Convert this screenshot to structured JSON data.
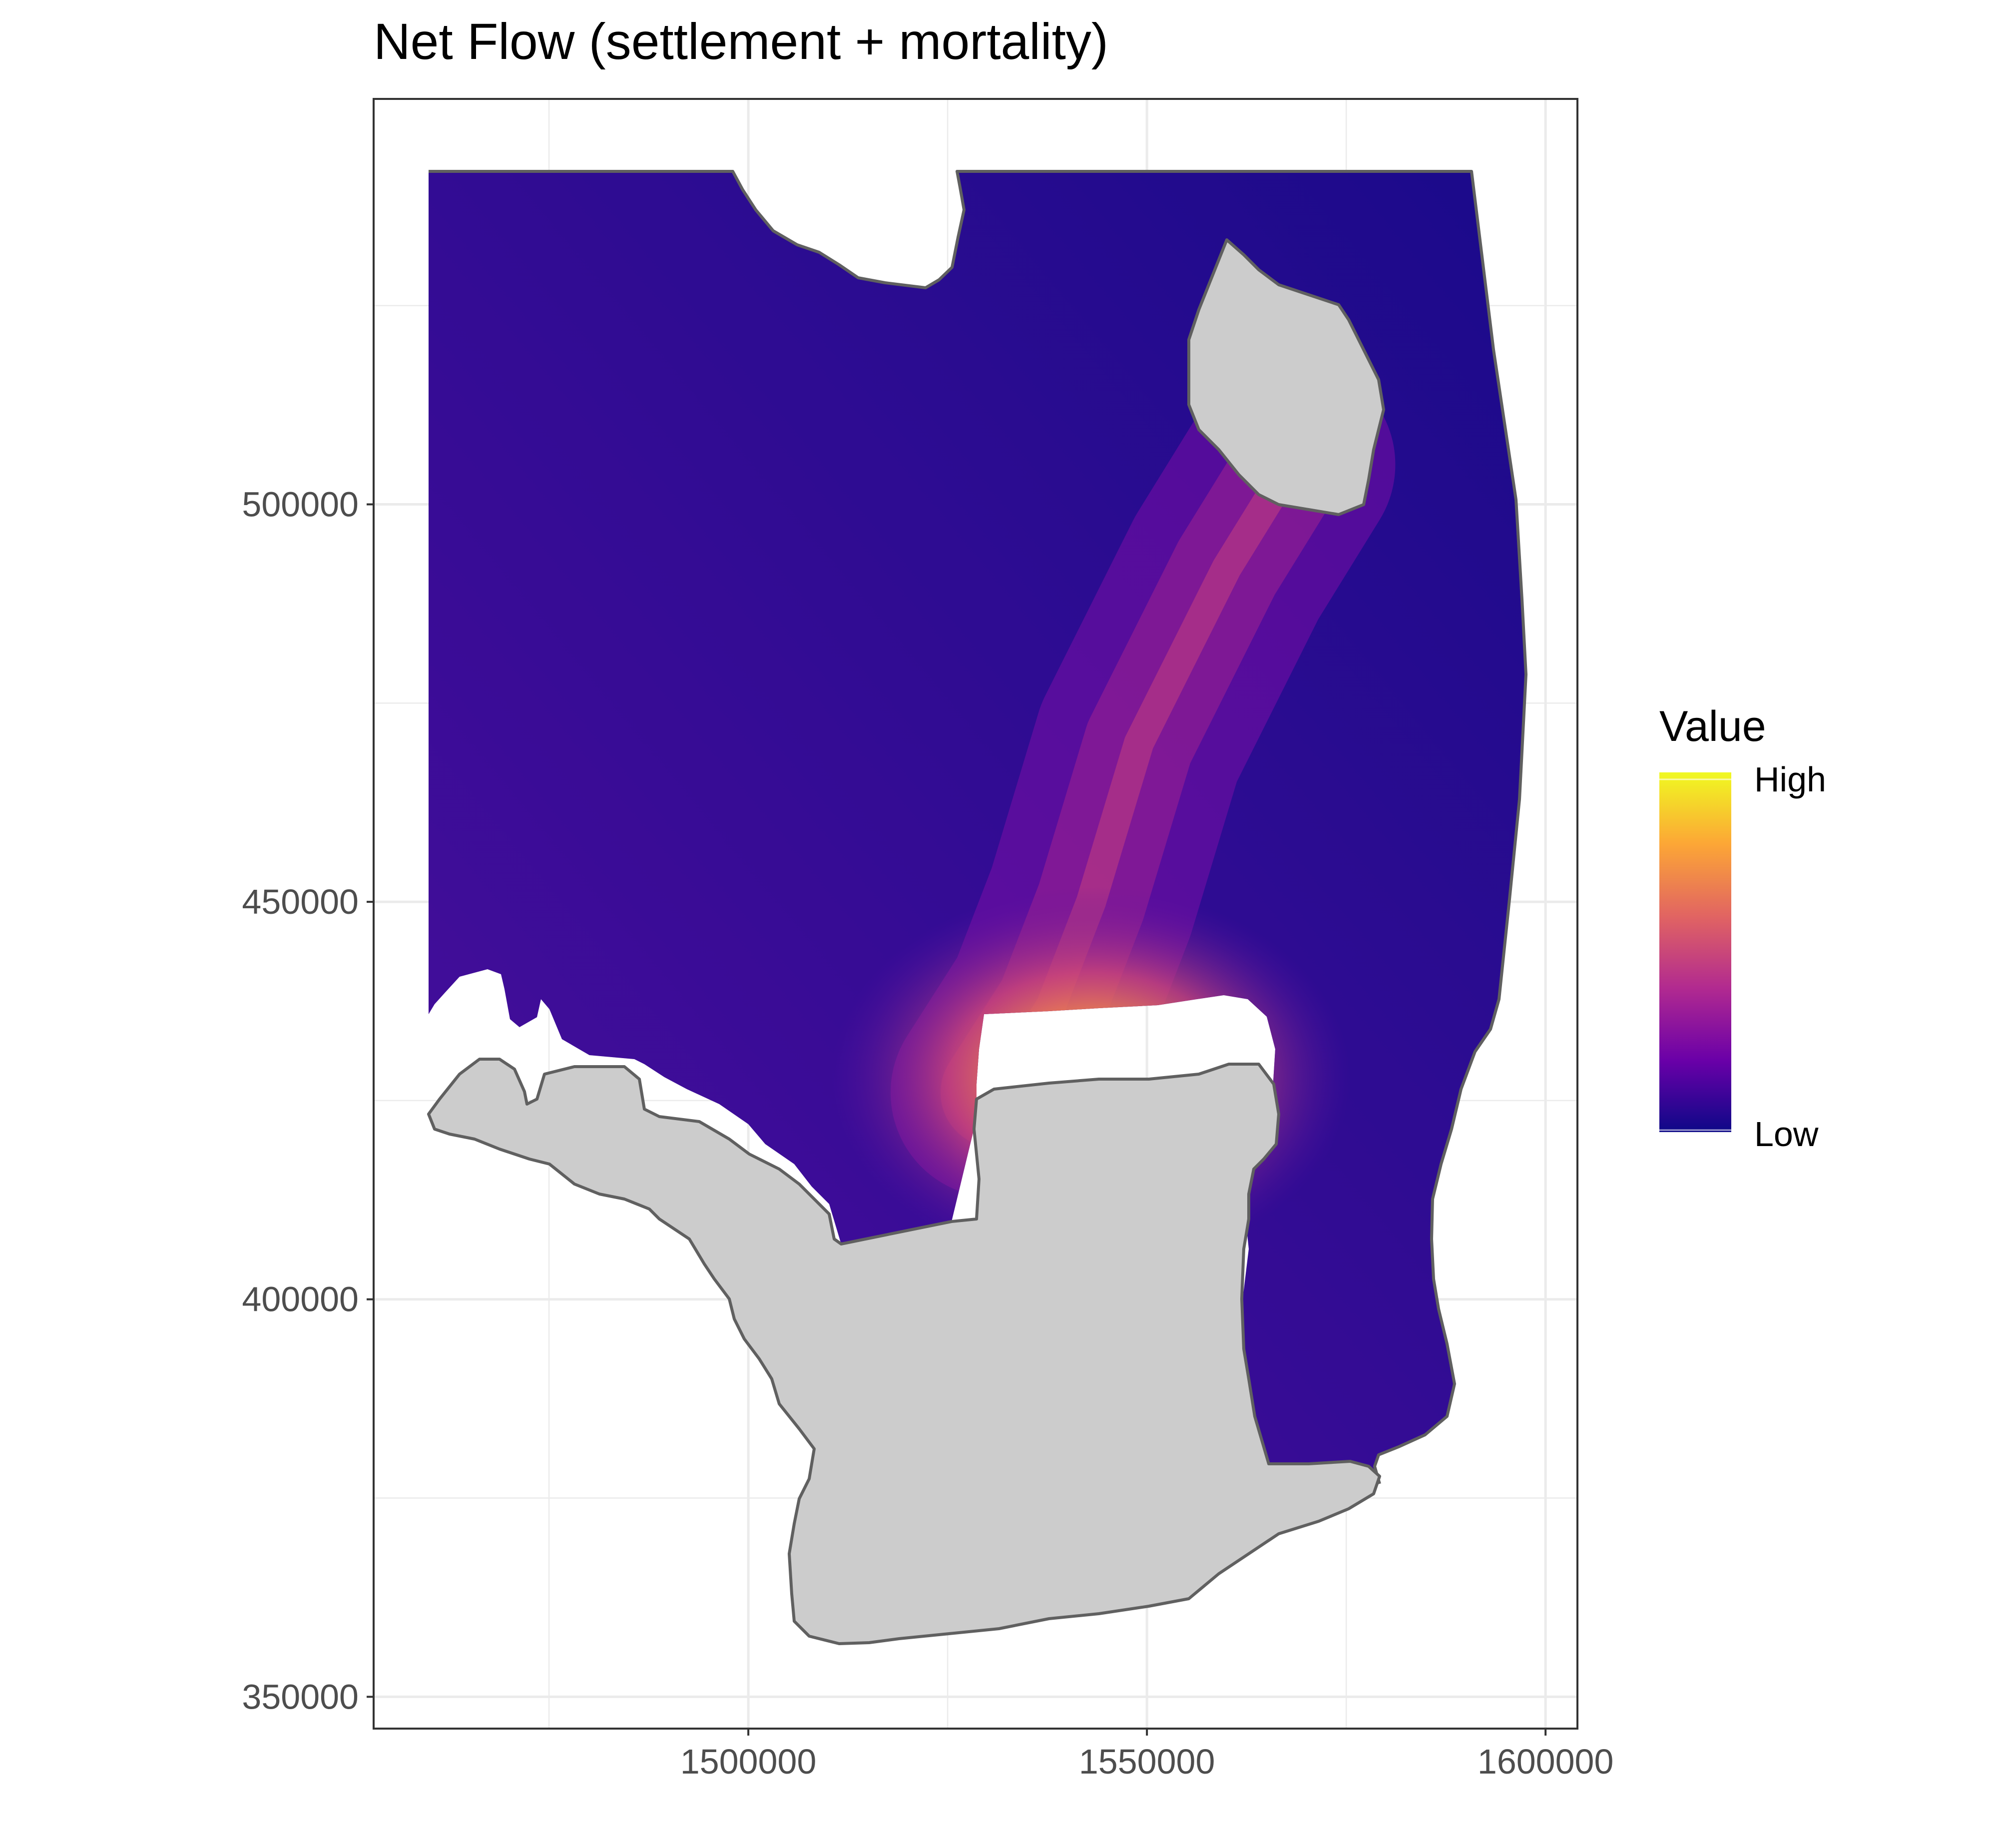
{
  "chart_data": {
    "type": "heatmap",
    "title": "Net Flow (settlement + mortality)",
    "xlabel": "",
    "ylabel": "",
    "xlim": [
      1453000,
      1604000
    ],
    "ylim": [
      346000,
      551000
    ],
    "x_ticks": [
      1500000,
      1550000,
      1600000
    ],
    "x_tick_labels": [
      "1500000",
      "1550000",
      "1600000"
    ],
    "y_ticks": [
      350000,
      400000,
      450000,
      500000
    ],
    "y_tick_labels": [
      "350000",
      "400000",
      "450000",
      "500000"
    ],
    "grid": true,
    "legend": {
      "title": "Value",
      "position": "right",
      "high_label": "High",
      "low_label": "Low",
      "colors": [
        "#0d0887",
        "#6a00a8",
        "#b12a90",
        "#e16462",
        "#fca636",
        "#f0f921"
      ]
    },
    "fill_colors": {
      "low": "#1a0a8a",
      "mid": "#5a0fa3",
      "high": "#fbd03a",
      "masked_area": "#cccccc",
      "outline": "#606060"
    },
    "hotspot": {
      "x": 1543000,
      "y": 428000,
      "level": "high"
    },
    "plume": [
      [
        1531000,
        426000
      ],
      [
        1538000,
        437000
      ],
      [
        1543000,
        450000
      ],
      [
        1549000,
        470000
      ],
      [
        1560000,
        492000
      ],
      [
        1568000,
        505000
      ]
    ]
  }
}
